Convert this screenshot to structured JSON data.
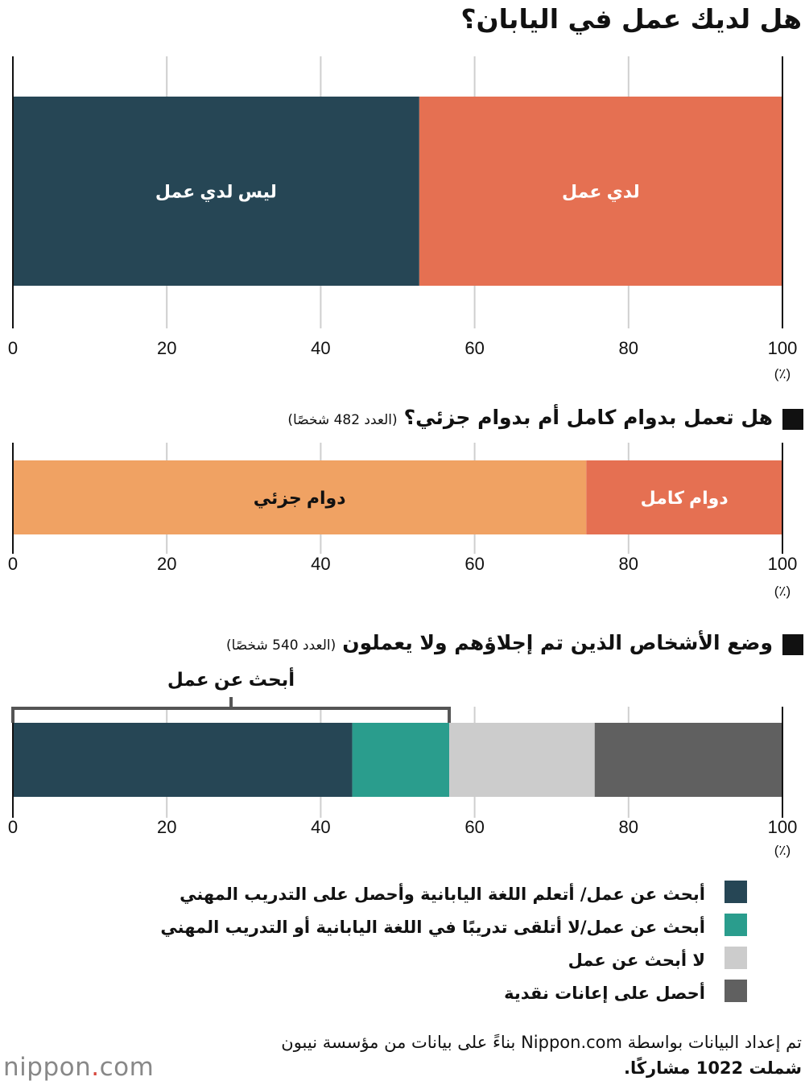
{
  "title": "هل لديك عمل في اليابان؟",
  "unit": "(٪)",
  "chart_data": [
    {
      "type": "bar",
      "orientation": "horizontal-stacked",
      "title": "هل لديك عمل في اليابان؟",
      "xlim": [
        0,
        100
      ],
      "ticks": [
        "0",
        "20",
        "40",
        "60",
        "80",
        "100"
      ],
      "grid": true,
      "series": [
        {
          "name": "لدي عمل",
          "value": 47.2,
          "color": "#e57052"
        },
        {
          "name": "ليس لدي عمل",
          "value": 52.8,
          "color": "#264655"
        }
      ]
    },
    {
      "type": "bar",
      "orientation": "horizontal-stacked",
      "title": "هل تعمل بدوام كامل أم بدوام جزئي؟",
      "n_label": "(العدد 482 شخصًا)",
      "xlim": [
        0,
        100
      ],
      "ticks": [
        "0",
        "20",
        "40",
        "60",
        "80",
        "100"
      ],
      "grid": true,
      "series": [
        {
          "name": "دوام كامل",
          "value": 25.5,
          "color": "#e57052"
        },
        {
          "name": "دوام جزئي",
          "value": 74.5,
          "color": "#f0a263"
        }
      ]
    },
    {
      "type": "bar",
      "orientation": "horizontal-stacked",
      "title": "وضع الأشخاص الذين تم إجلاؤهم ولا يعملون",
      "n_label": "(العدد 540 شخصًا)",
      "xlim": [
        0,
        100
      ],
      "ticks": [
        "0",
        "20",
        "40",
        "60",
        "80",
        "100"
      ],
      "grid": true,
      "bracket_label": "أبحث عن عمل",
      "series": [
        {
          "name": "أبحث عن عمل/ أتعلم اللغة اليابانية وأحصل على التدريب المهني",
          "value": 44.1,
          "color": "#264655"
        },
        {
          "name": "أبحث عن عمل/لا أتلقى تدريبًا في اللغة اليابانية أو التدريب المهني",
          "value": 12.6,
          "color": "#2a9d8d"
        },
        {
          "name": "لا أبحث عن عمل",
          "value": 18.9,
          "color": "#cccccc"
        },
        {
          "name": "أحصل على إعانات نقدية",
          "value": 24.4,
          "color": "#606060"
        }
      ]
    }
  ],
  "legend": [
    {
      "label": "أبحث عن عمل/ أتعلم اللغة اليابانية وأحصل على التدريب المهني",
      "color": "#264655"
    },
    {
      "label": "أبحث عن عمل/لا أتلقى تدريبًا في اللغة اليابانية أو التدريب المهني",
      "color": "#2a9d8d"
    },
    {
      "label": "لا أبحث عن عمل",
      "color": "#cccccc"
    },
    {
      "label": "أحصل على إعانات نقدية",
      "color": "#606060"
    }
  ],
  "source": {
    "line1": "تم إعداد البيانات بواسطة Nippon.com بناءً على بيانات من مؤسسة نيبون",
    "line2": "شملت 1022 مشاركًا."
  },
  "logo": {
    "main": "nippon",
    "dot": ".",
    "tld": "com"
  }
}
